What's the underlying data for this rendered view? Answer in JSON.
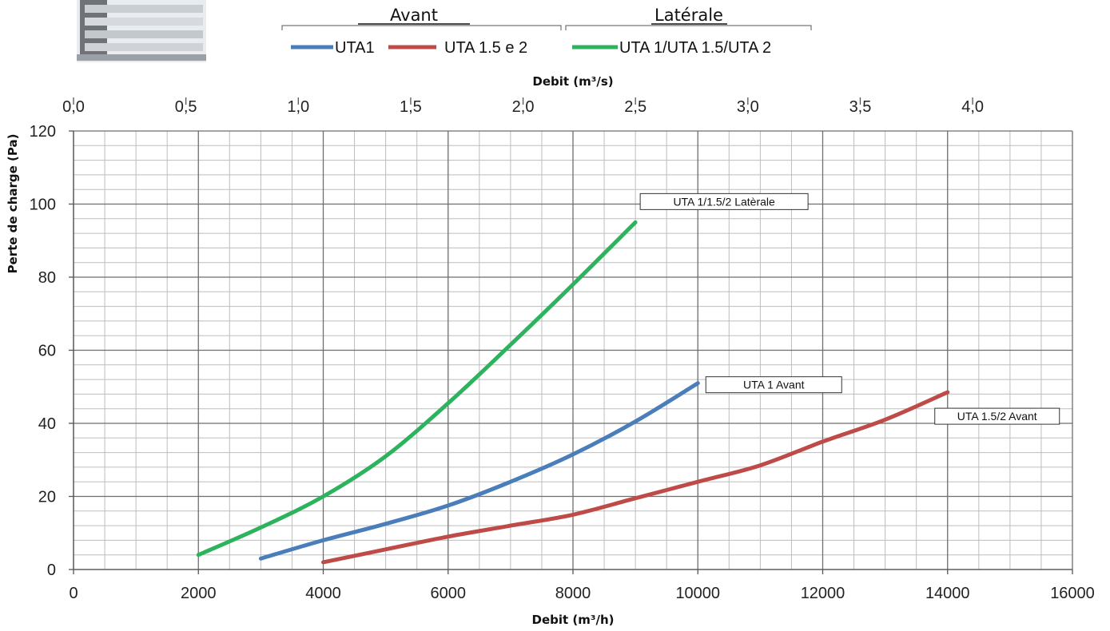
{
  "legend": {
    "groups": [
      {
        "title": "Avant",
        "entries": [
          {
            "label": "UTA1",
            "color": "#4a7ebb"
          },
          {
            "label": "UTA 1.5 e 2",
            "color": "#be4b48"
          }
        ]
      },
      {
        "title": "Latérale",
        "entries": [
          {
            "label": "UTA 1/UTA 1.5/UTA 2",
            "color": "#2db35d"
          }
        ]
      }
    ]
  },
  "chart_data": {
    "type": "line",
    "xlabel": "Debit (m³/h)",
    "x2label": "Debit (m³/s)",
    "ylabel": "Perte de charge (Pa)",
    "xlim": [
      0,
      16000
    ],
    "ylim": [
      0,
      120
    ],
    "x2lim": [
      0,
      4.444
    ],
    "xticks": [
      "0",
      "2000",
      "4000",
      "6000",
      "8000",
      "10000",
      "12000",
      "14000",
      "16000"
    ],
    "yticks": [
      "0",
      "20",
      "40",
      "60",
      "80",
      "100",
      "120"
    ],
    "x2ticks": [
      "0,0",
      "0,5",
      "1,0",
      "1,5",
      "2,0",
      "2,5",
      "3,0",
      "3,5",
      "4,0"
    ],
    "grid": true,
    "legend_position": "top",
    "series": [
      {
        "name": "UTA1",
        "label": "UTA 1 Avant",
        "color": "#4a7ebb",
        "x": [
          3000,
          4000,
          5000,
          6000,
          7000,
          8000,
          9000,
          10000
        ],
        "y": [
          3,
          8,
          12.5,
          17.5,
          24,
          31.5,
          40.5,
          51
        ]
      },
      {
        "name": "UTA 1.5 e 2",
        "label": "UTA 1.5/2 Avant",
        "color": "#be4b48",
        "x": [
          4000,
          5000,
          6000,
          7000,
          8000,
          9000,
          10000,
          11000,
          12000,
          13000,
          14000
        ],
        "y": [
          2,
          5.5,
          9,
          12,
          15,
          19.5,
          24,
          28.5,
          35,
          41,
          48.5
        ]
      },
      {
        "name": "UTA 1/UTA 1.5/UTA 2",
        "label": "UTA 1/1.5/2 Latèrale",
        "color": "#2db35d",
        "x": [
          2000,
          3000,
          4000,
          5000,
          6000,
          7000,
          8000,
          9000
        ],
        "y": [
          4,
          11.5,
          20,
          31,
          45.5,
          61.5,
          78,
          95
        ]
      }
    ]
  }
}
